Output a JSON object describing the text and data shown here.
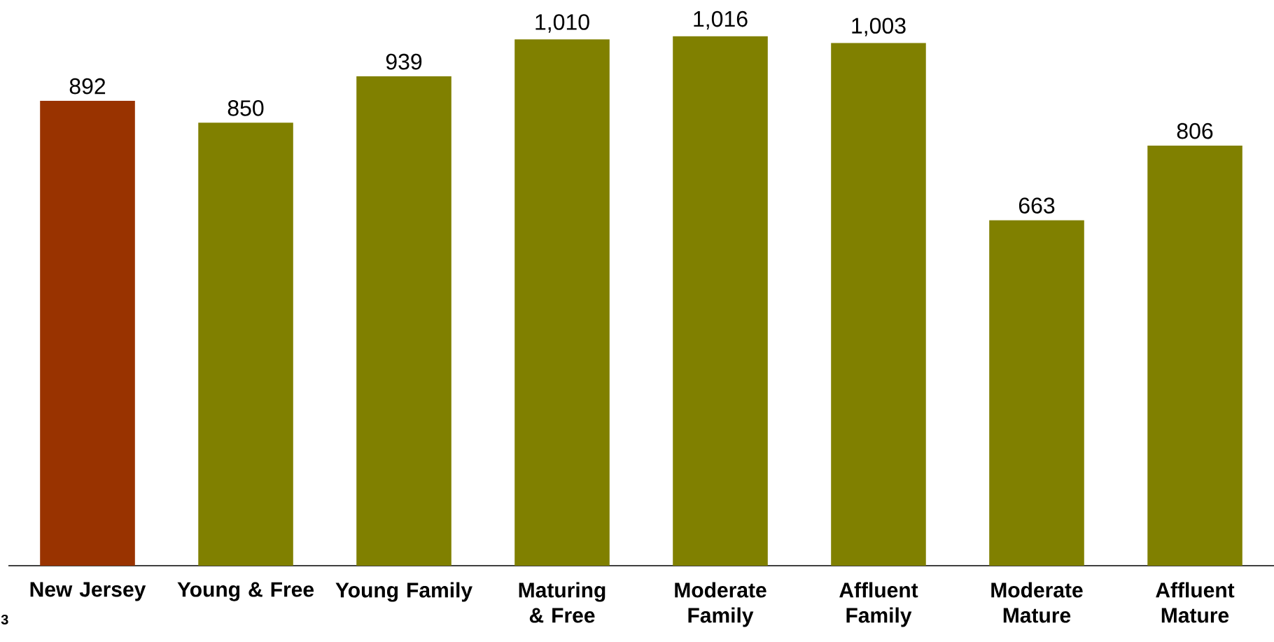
{
  "chart_data": {
    "type": "bar",
    "categories": [
      "New Jersey",
      "Young & Free",
      "Young Family",
      "Maturing & Free",
      "Moderate Family",
      "Affluent Family",
      "Moderate Mature",
      "Affluent Mature"
    ],
    "values": [
      892,
      850,
      939,
      1010,
      1016,
      1003,
      663,
      806
    ],
    "colors": [
      "#993300",
      "#808000",
      "#808000",
      "#808000",
      "#808000",
      "#808000",
      "#808000",
      "#808000"
    ],
    "value_labels": [
      "892",
      "850",
      "939",
      "1,010",
      "1,016",
      "1,003",
      "663",
      "806"
    ],
    "annotations": [
      "3"
    ]
  }
}
